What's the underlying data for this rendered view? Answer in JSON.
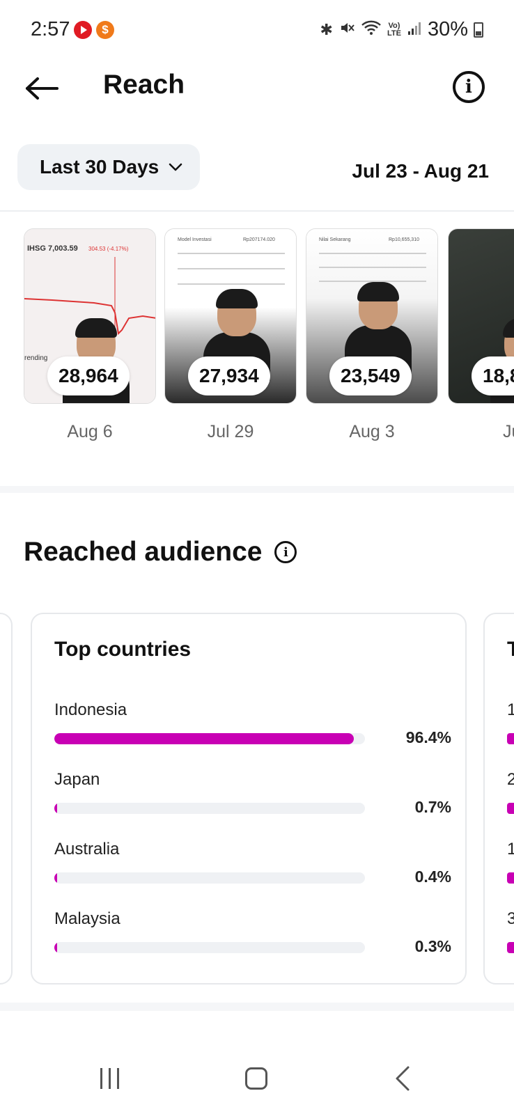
{
  "status_bar": {
    "time": "2:57",
    "battery": "30%",
    "icons": [
      "bluetooth-icon",
      "mute-icon",
      "wifi-icon",
      "volte-icon",
      "signal-icon",
      "battery-icon"
    ]
  },
  "header": {
    "title": "Reach"
  },
  "filter": {
    "period": "Last 30 Days",
    "date_range": "Jul 23 - Aug 21"
  },
  "reels": [
    {
      "count": "28,964",
      "date": "Aug 6",
      "overlay": "IHSG 7,003.59",
      "overlay_sub": "304.53 (-4.17%)",
      "bottom_text": "rending"
    },
    {
      "count": "27,934",
      "date": "Jul 29",
      "overlay": "Model Investasi",
      "overlay_sub": "Rp207174.020"
    },
    {
      "count": "23,549",
      "date": "Aug 3",
      "overlay": "Nilai Sekarang",
      "overlay_sub": "Rp10,655,310"
    },
    {
      "count": "18,8",
      "date": "Jul"
    }
  ],
  "reached_audience": {
    "title": "Reached audience",
    "top_countries": {
      "title": "Top countries",
      "items": [
        {
          "name": "Indonesia",
          "value": 96.4,
          "label": "96.4%"
        },
        {
          "name": "Japan",
          "value": 0.7,
          "label": "0.7%"
        },
        {
          "name": "Australia",
          "value": 0.4,
          "label": "0.4%"
        },
        {
          "name": "Malaysia",
          "value": 0.3,
          "label": "0.3%"
        }
      ]
    },
    "next_card": {
      "title_peek": "T",
      "row_peeks": [
        "1",
        "2",
        "1",
        "3"
      ]
    }
  },
  "colors": {
    "accent": "#c800b4",
    "track": "#eff1f4",
    "chip_bg": "#eff2f5"
  }
}
